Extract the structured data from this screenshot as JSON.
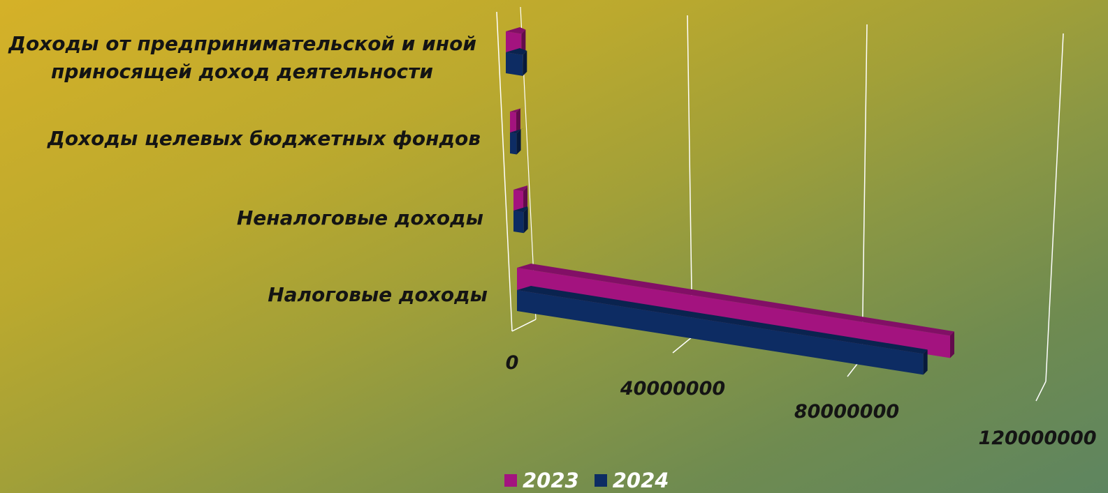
{
  "chart_data": {
    "type": "bar",
    "orientation": "horizontal",
    "style": "3d",
    "categories": [
      "Налоговые доходы",
      "Неналоговые доходы",
      "Доходы целевых бюджетных фондов",
      "Доходы от предпринимательской и иной приносящей доход деятельности"
    ],
    "category_lines": [
      [
        "Налоговые доходы"
      ],
      [
        "Неналоговые доходы"
      ],
      [
        "Доходы целевых бюджетных фондов"
      ],
      [
        "Доходы от предпринимательской и иной",
        "приносящей доход деятельности"
      ]
    ],
    "series": [
      {
        "name": "2023",
        "color": "#a3137f",
        "values": [
          97000000,
          2200000,
          1400000,
          3500000
        ]
      },
      {
        "name": "2024",
        "color": "#0d2c63",
        "values": [
          91000000,
          2300000,
          1500000,
          3800000
        ]
      }
    ],
    "xlim": [
      0,
      120000000
    ],
    "x_ticks": [
      "0",
      "40000000",
      "80000000",
      "120000000"
    ],
    "grid": true,
    "legend_position": "bottom"
  },
  "colors": {
    "axis_line": "#ffffff",
    "label_text": "#141414",
    "legend_text": "#ffffff"
  }
}
